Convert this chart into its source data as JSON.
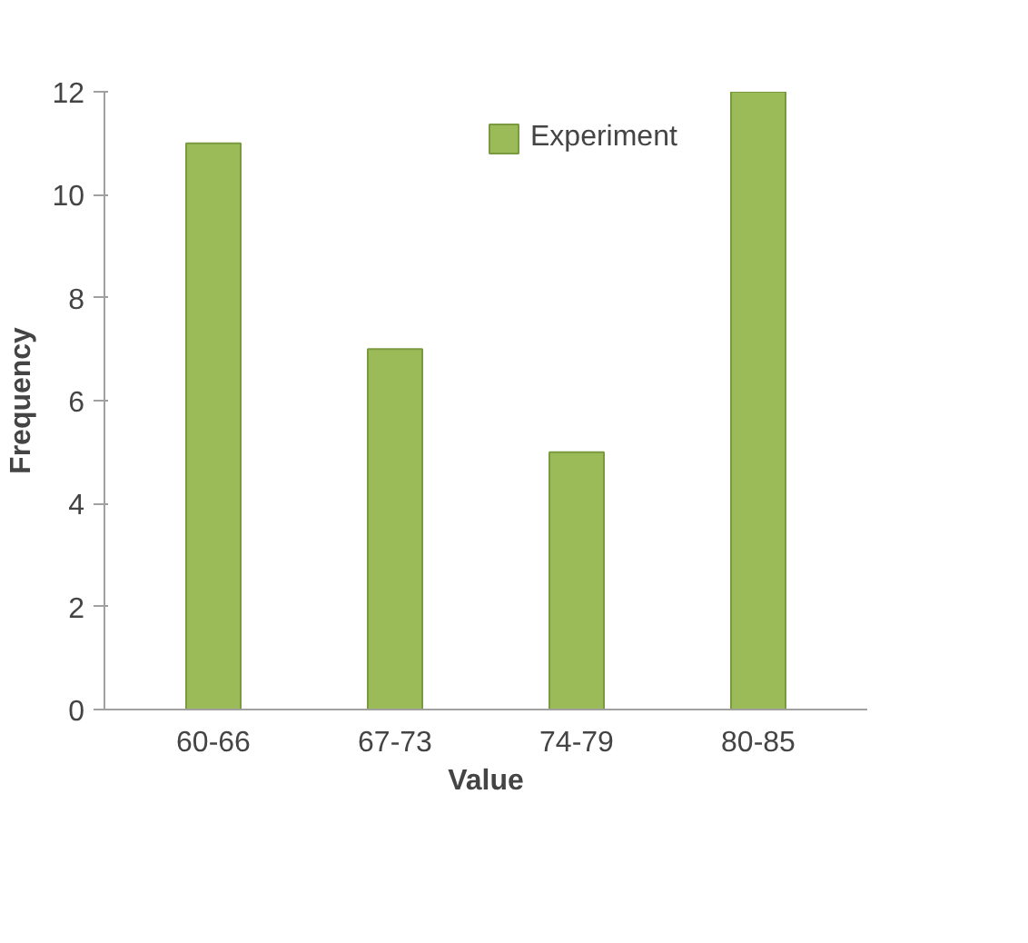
{
  "chart_data": {
    "type": "bar",
    "xlabel": "Value",
    "ylabel": "Frequency",
    "categories": [
      "60-66",
      "67-73",
      "74-79",
      "80-85"
    ],
    "series": [
      {
        "name": "Experiment",
        "color": "#9bbb59",
        "values": [
          11,
          7,
          5,
          12
        ]
      }
    ],
    "ylim": [
      0,
      12
    ],
    "yticks": [
      0,
      2,
      4,
      6,
      8,
      10,
      12
    ],
    "grid": false,
    "legend": "top right"
  }
}
